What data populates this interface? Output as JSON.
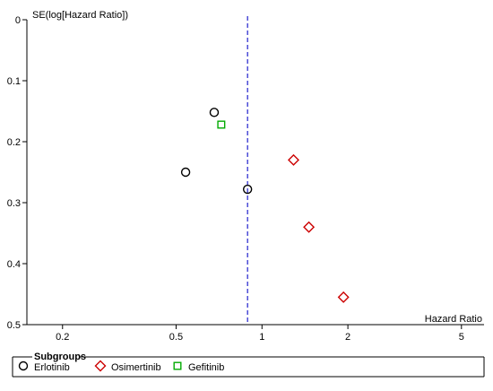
{
  "chart_data": {
    "type": "scatter",
    "subtype": "funnel-plot",
    "xlabel": "Hazard Ratio",
    "ylabel": "SE(log[Hazard Ratio])",
    "x_scale": "log",
    "xlim": [
      0.15,
      6
    ],
    "ylim": [
      0,
      0.5
    ],
    "y_inverted": true,
    "x_ticks": [
      {
        "value": 0.2,
        "label": "0.2"
      },
      {
        "value": 0.5,
        "label": "0.5"
      },
      {
        "value": 1,
        "label": "1"
      },
      {
        "value": 2,
        "label": "2"
      },
      {
        "value": 5,
        "label": "5"
      }
    ],
    "y_ticks": [
      {
        "value": 0,
        "label": "0"
      },
      {
        "value": 0.1,
        "label": "0.1"
      },
      {
        "value": 0.2,
        "label": "0.2"
      },
      {
        "value": 0.3,
        "label": "0.3"
      },
      {
        "value": 0.4,
        "label": "0.4"
      },
      {
        "value": 0.5,
        "label": "0.5"
      }
    ],
    "reference_line": {
      "x": 0.89,
      "style": "dashed",
      "color": "#1f1fcc"
    },
    "grid": false,
    "legend": {
      "title": "Subgroups",
      "position": "bottom"
    },
    "series": [
      {
        "name": "Erlotinib",
        "marker": "circle",
        "color": "#000000",
        "points": [
          {
            "x": 0.68,
            "y": 0.152
          },
          {
            "x": 0.54,
            "y": 0.25
          },
          {
            "x": 0.89,
            "y": 0.278
          }
        ]
      },
      {
        "name": "Osimertinib",
        "marker": "diamond",
        "color": "#cc0000",
        "points": [
          {
            "x": 1.29,
            "y": 0.23
          },
          {
            "x": 1.46,
            "y": 0.34
          },
          {
            "x": 1.93,
            "y": 0.455
          }
        ]
      },
      {
        "name": "Gefitinib",
        "marker": "square",
        "color": "#00aa00",
        "points": [
          {
            "x": 0.72,
            "y": 0.172
          }
        ]
      }
    ]
  }
}
